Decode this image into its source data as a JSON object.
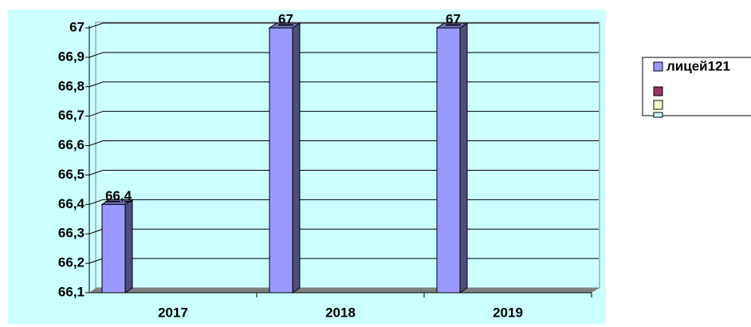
{
  "chart_data": {
    "type": "bar",
    "categories": [
      "2017",
      "2018",
      "2019"
    ],
    "series": [
      {
        "name": "лицей121",
        "color": "#9999ff",
        "values": [
          66.4,
          67,
          67
        ],
        "value_labels": [
          "66,4",
          "67",
          "67"
        ]
      }
    ],
    "ylim": [
      66.1,
      67
    ],
    "yticks": [
      {
        "value": 66.1,
        "label": "66,1"
      },
      {
        "value": 66.2,
        "label": "66,2"
      },
      {
        "value": 66.3,
        "label": "66,3"
      },
      {
        "value": 66.4,
        "label": "66,4"
      },
      {
        "value": 66.5,
        "label": "66,5"
      },
      {
        "value": 66.6,
        "label": "66,6"
      },
      {
        "value": 66.7,
        "label": "66,7"
      },
      {
        "value": 66.8,
        "label": "66,8"
      },
      {
        "value": 66.9,
        "label": "66,9"
      },
      67
    ],
    "grid": true
  }
}
